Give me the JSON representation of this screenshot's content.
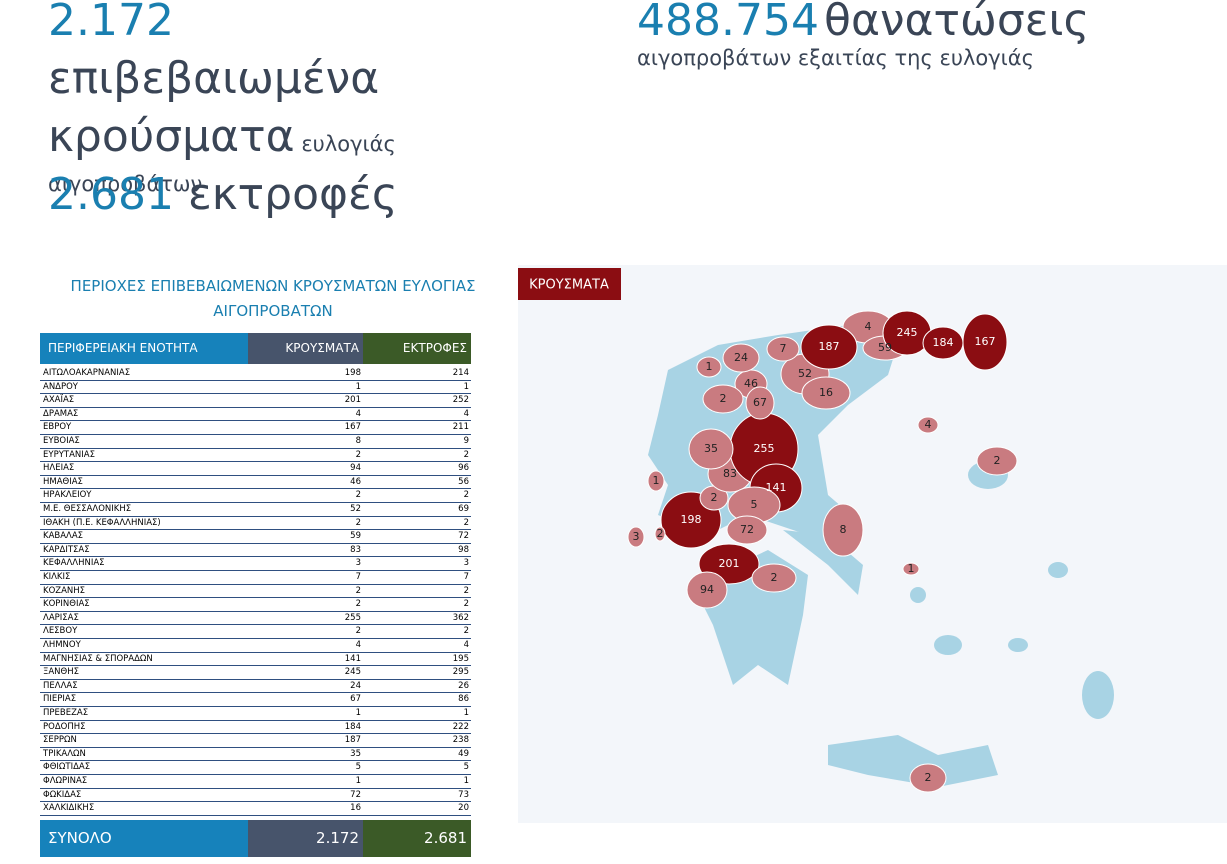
{
  "header": {
    "cases_number": "2.172",
    "cases_label": "επιβεβαιωμένα κρούσματα",
    "cases_sub": "ευλογιάς αιγοπροβάτων",
    "culled_number": "488.754",
    "culled_label": "θανατώσεις",
    "culled_sub": "αιγοπροβάτων εξαιτίας της ευλογιάς",
    "farms_number": "2.681",
    "farms_label": "εκτροφές"
  },
  "table": {
    "title": "ΠΕΡΙΟΧΕΣ ΕΠΙΒΕΒΑΙΩΜΕΝΩΝ ΚΡΟΥΣΜΑΤΩΝ ΕΥΛΟΓΙΑΣ ΑΙΓΟΠΡΟΒΑΤΩΝ",
    "columns": [
      "ΠΕΡΙΦΕΡΕΙΑΚΗ ΕΝΟΤΗΤΑ",
      "ΚΡΟΥΣΜΑΤΑ",
      "ΕΚΤΡΟΦΕΣ"
    ],
    "rows": [
      [
        "ΑΙΤΩΛΟΑΚΑΡΝΑΝΙΑΣ",
        198,
        214
      ],
      [
        "ΑΝΔΡΟΥ",
        1,
        1
      ],
      [
        "ΑΧΑΪΑΣ",
        201,
        252
      ],
      [
        "ΔΡΑΜΑΣ",
        4,
        4
      ],
      [
        "ΕΒΡΟΥ",
        167,
        211
      ],
      [
        "ΕΥΒΟΙΑΣ",
        8,
        9
      ],
      [
        "ΕΥΡΥΤΑΝΙΑΣ",
        2,
        2
      ],
      [
        "ΗΛΕΙΑΣ",
        94,
        96
      ],
      [
        "ΗΜΑΘΙΑΣ",
        46,
        56
      ],
      [
        "ΗΡΑΚΛΕΙΟΥ",
        2,
        2
      ],
      [
        "Μ.Ε. ΘΕΣΣΑΛΟΝΙΚΗΣ",
        52,
        69
      ],
      [
        "ΙΘΑΚΗ (Π.Ε. ΚΕΦΑΛΛΗΝΙΑΣ)",
        2,
        2
      ],
      [
        "ΚΑΒΑΛΑΣ",
        59,
        72
      ],
      [
        "ΚΑΡΔΙΤΣΑΣ",
        83,
        98
      ],
      [
        "ΚΕΦΑΛΛΗΝΙΑΣ",
        3,
        3
      ],
      [
        "ΚΙΛΚΙΣ",
        7,
        7
      ],
      [
        "ΚΟΖΑΝΗΣ",
        2,
        2
      ],
      [
        "ΚΟΡΙΝΘΙΑΣ",
        2,
        2
      ],
      [
        "ΛΑΡΙΣΑΣ",
        255,
        362
      ],
      [
        "ΛΕΣΒΟΥ",
        2,
        2
      ],
      [
        "ΛΗΜΝΟΥ",
        4,
        4
      ],
      [
        "ΜΑΓΝΗΣΙΑΣ & ΣΠΟΡΑΔΩΝ",
        141,
        195
      ],
      [
        "ΞΑΝΘΗΣ",
        245,
        295
      ],
      [
        "ΠΕΛΛΑΣ",
        24,
        26
      ],
      [
        "ΠΙΕΡΙΑΣ",
        67,
        86
      ],
      [
        "ΠΡΕΒΕΖΑΣ",
        1,
        1
      ],
      [
        "ΡΟΔΟΠΗΣ",
        184,
        222
      ],
      [
        "ΣΕΡΡΩΝ",
        187,
        238
      ],
      [
        "ΤΡΙΚΑΛΩΝ",
        35,
        49
      ],
      [
        "ΦΘΙΩΤΙΔΑΣ",
        5,
        5
      ],
      [
        "ΦΛΩΡΙΝΑΣ",
        1,
        1
      ],
      [
        "ΦΩΚΙΔΑΣ",
        72,
        73
      ],
      [
        "ΧΑΛΚΙΔΙΚΗΣ",
        16,
        20
      ]
    ],
    "total": [
      "ΣΥΝΟΛΟ",
      "2.172",
      "2.681"
    ]
  },
  "map": {
    "badge": "ΚΡΟΥΣΜΑΤΑ"
  }
}
